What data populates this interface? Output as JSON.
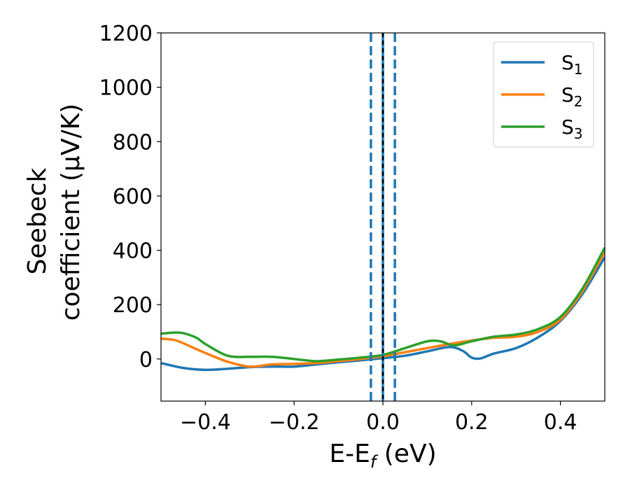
{
  "chart_data": {
    "type": "line",
    "xlabel": "E-E",
    "xlabel_sub": "f",
    "xlabel_unit": " (eV)",
    "ylabel_line1": "Seebeck",
    "ylabel_line2": "coefficient  (μV/K)",
    "xlim": [
      -0.5,
      0.5
    ],
    "ylim": [
      -155,
      1200
    ],
    "xticks": [
      -0.4,
      -0.2,
      0.0,
      0.2,
      0.4
    ],
    "xtick_labels": [
      "−0.4",
      "−0.2",
      "0.0",
      "0.2",
      "0.4"
    ],
    "yticks": [
      0,
      200,
      400,
      600,
      800,
      1000,
      1200
    ],
    "ytick_labels": [
      "0",
      "200",
      "400",
      "600",
      "800",
      "1000",
      "1200"
    ],
    "grid": false,
    "legend_position": "top-right",
    "series": [
      {
        "name": "S",
        "subscript": "1",
        "color": "#1f77b4",
        "x": [
          -0.5,
          -0.45,
          -0.4,
          -0.35,
          -0.3,
          -0.25,
          -0.2,
          -0.15,
          -0.1,
          -0.05,
          0.0,
          0.05,
          0.1,
          0.15,
          0.18,
          0.2,
          0.22,
          0.25,
          0.3,
          0.35,
          0.4,
          0.45,
          0.5
        ],
        "y": [
          -15,
          -33,
          -40,
          -36,
          -30,
          -28,
          -28,
          -20,
          -12,
          -5,
          3,
          12,
          28,
          44,
          30,
          5,
          2,
          20,
          40,
          80,
          140,
          240,
          375
        ]
      },
      {
        "name": "S",
        "subscript": "2",
        "color": "#ff7f0e",
        "x": [
          -0.5,
          -0.47,
          -0.45,
          -0.4,
          -0.35,
          -0.3,
          -0.25,
          -0.2,
          -0.15,
          -0.1,
          -0.05,
          0.0,
          0.05,
          0.1,
          0.15,
          0.2,
          0.25,
          0.3,
          0.35,
          0.4,
          0.45,
          0.5
        ],
        "y": [
          75,
          70,
          58,
          22,
          -10,
          -28,
          -20,
          -18,
          -15,
          -8,
          0,
          10,
          25,
          40,
          55,
          68,
          78,
          82,
          100,
          145,
          250,
          395
        ]
      },
      {
        "name": "S",
        "subscript": "3",
        "color": "#2ca02c",
        "x": [
          -0.5,
          -0.47,
          -0.45,
          -0.42,
          -0.4,
          -0.35,
          -0.3,
          -0.25,
          -0.2,
          -0.15,
          -0.1,
          -0.05,
          0.0,
          0.05,
          0.1,
          0.13,
          0.16,
          0.2,
          0.25,
          0.3,
          0.35,
          0.4,
          0.45,
          0.5
        ],
        "y": [
          93,
          97,
          95,
          78,
          55,
          12,
          8,
          8,
          0,
          -8,
          -2,
          5,
          15,
          40,
          65,
          65,
          50,
          65,
          82,
          90,
          110,
          155,
          260,
          410
        ]
      }
    ],
    "vlines": [
      {
        "x": -0.027,
        "color": "#1f77b4",
        "style": "dashed"
      },
      {
        "x": 0.0,
        "color": "#1f77b4",
        "style": "solid"
      },
      {
        "x": 0.0,
        "color": "#000000",
        "style": "dotted"
      },
      {
        "x": 0.027,
        "color": "#1f77b4",
        "style": "dashed"
      }
    ]
  }
}
